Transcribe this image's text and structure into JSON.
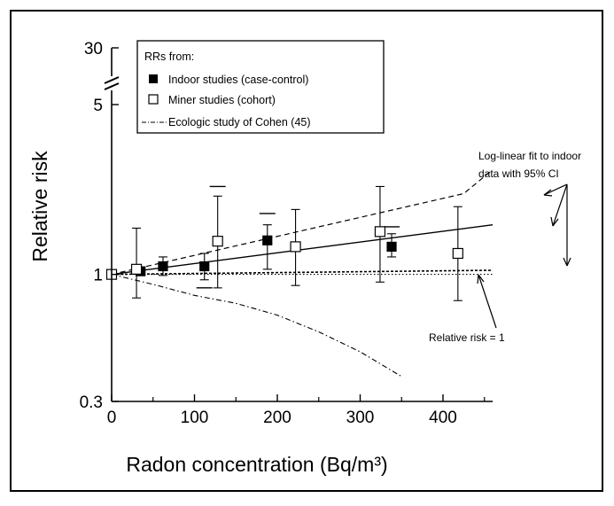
{
  "chart_data": {
    "type": "scatter",
    "xlabel": "Radon concentration (Bq/m³)",
    "ylabel": "Relative risk",
    "x_ticks": [
      0,
      100,
      200,
      300,
      400
    ],
    "xlim": [
      0,
      460
    ],
    "y_scale": "log",
    "y_ticks": [
      0.3,
      1,
      5
    ],
    "y_break_tick": 30,
    "ylim": [
      0.3,
      5
    ],
    "legend": {
      "title": "RRs from:",
      "entries": [
        {
          "label": "Indoor studies (case-control)",
          "marker": "filled-square"
        },
        {
          "label": "Miner studies (cohort)",
          "marker": "open-square"
        },
        {
          "label": "Ecologic study of Cohen (45)",
          "marker": "dash-dot-line"
        }
      ],
      "position": "top-left"
    },
    "series": [
      {
        "name": "Indoor studies (case-control)",
        "marker": "filled-square",
        "points": [
          {
            "x": 35,
            "y": 1.03,
            "lo": 1.0,
            "hi": 1.07
          },
          {
            "x": 62,
            "y": 1.08,
            "lo": 0.99,
            "hi": 1.18
          },
          {
            "x": 112,
            "y": 1.08,
            "lo": 0.95,
            "hi": 1.22
          },
          {
            "x": 188,
            "y": 1.38,
            "lo": 1.05,
            "hi": 1.6
          },
          {
            "x": 338,
            "y": 1.3,
            "lo": 1.18,
            "hi": 1.47
          }
        ]
      },
      {
        "name": "Miner studies (cohort)",
        "marker": "open-square",
        "points": [
          {
            "x": 0,
            "y": 1.0
          },
          {
            "x": 30,
            "y": 1.05,
            "lo": 0.8,
            "hi": 1.55
          },
          {
            "x": 128,
            "y": 1.37,
            "lo": 0.88,
            "hi": 2.1
          },
          {
            "x": 222,
            "y": 1.3,
            "lo": 0.9,
            "hi": 1.85
          },
          {
            "x": 324,
            "y": 1.5,
            "lo": 0.93,
            "hi": 2.3
          },
          {
            "x": 418,
            "y": 1.22,
            "lo": 0.78,
            "hi": 1.9
          }
        ]
      }
    ],
    "lines": [
      {
        "name": "Ecologic study of Cohen (45)",
        "style": "dash-dot",
        "x": [
          0,
          50,
          100,
          150,
          200,
          250,
          300,
          350
        ],
        "y": [
          1.0,
          0.91,
          0.82,
          0.76,
          0.68,
          0.58,
          0.48,
          0.38
        ]
      },
      {
        "name": "Log-linear fit",
        "style": "solid",
        "x": [
          0,
          460
        ],
        "y": [
          1.0,
          1.6
        ]
      },
      {
        "name": "Upper 95% CI",
        "style": "dashed",
        "x": [
          0,
          425,
          460
        ],
        "y": [
          1.0,
          2.15,
          2.7
        ]
      },
      {
        "name": "Lower 95% CI",
        "style": "short-dash",
        "x": [
          0,
          460
        ],
        "y": [
          1.0,
          1.04
        ]
      },
      {
        "name": "Relative risk = 1",
        "style": "dotted",
        "x": [
          0,
          460
        ],
        "y": [
          1.0,
          1.0
        ]
      }
    ],
    "extra_ticks": [
      {
        "x": 128,
        "y": 2.3
      },
      {
        "x": 112,
        "y": 0.88
      },
      {
        "x": 188,
        "y": 1.78
      },
      {
        "x": 338,
        "y": 1.57
      }
    ],
    "annotations": [
      {
        "id": "fit",
        "lines": [
          "Log-linear fit to indoor",
          "data with 95% CI"
        ]
      },
      {
        "id": "rr1",
        "lines": [
          "Relative risk = 1"
        ]
      }
    ]
  }
}
